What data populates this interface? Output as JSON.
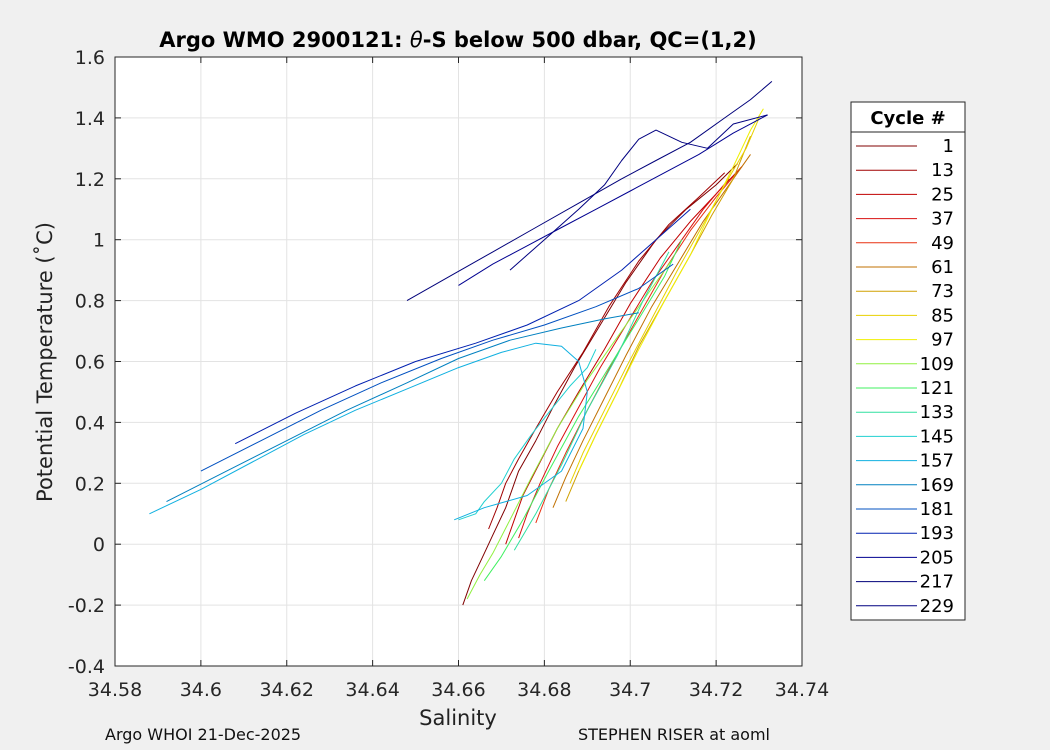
{
  "chart_data": {
    "type": "line",
    "title_prefix": "Argo WMO 2900121: ",
    "title_theta": "θ",
    "title_suffix": "-S below 500 dbar,  QC=(1,2)",
    "xlabel": "Salinity",
    "ylabel": "Potential Temperature (˚C)",
    "xlim": [
      34.58,
      34.74
    ],
    "ylim": [
      -0.4,
      1.6
    ],
    "xticks": [
      "34.58",
      "34.6",
      "34.62",
      "34.64",
      "34.66",
      "34.68",
      "34.7",
      "34.72",
      "34.74"
    ],
    "yticks": [
      "-0.4",
      "-0.2",
      "0",
      "0.2",
      "0.4",
      "0.6",
      "0.8",
      "1",
      "1.2",
      "1.4",
      "1.6"
    ],
    "grid": true,
    "legend_title": "Cycle #",
    "legend_position": "right-outside",
    "legend_entries": [
      "1",
      "13",
      "25",
      "37",
      "49",
      "61",
      "73",
      "85",
      "97",
      "109",
      "121",
      "133",
      "145",
      "157",
      "169",
      "181",
      "193",
      "205",
      "217",
      "229"
    ],
    "series_colors": [
      "#800000",
      "#a00000",
      "#c00000",
      "#d81010",
      "#e83010",
      "#c07000",
      "#d0a000",
      "#e8d000",
      "#f0f000",
      "#90f040",
      "#40f060",
      "#30e0a0",
      "#20d0d0",
      "#10b0e0",
      "#0080c0",
      "#0050c0",
      "#0020b0",
      "#000090",
      "#00007a",
      "#000080"
    ],
    "series": [
      {
        "name": "1",
        "points": [
          [
            34.661,
            -0.2
          ],
          [
            34.663,
            -0.12
          ],
          [
            34.666,
            -0.03
          ],
          [
            34.668,
            0.03
          ],
          [
            34.671,
            0.12
          ],
          [
            34.674,
            0.24
          ],
          [
            34.678,
            0.34
          ],
          [
            34.682,
            0.45
          ],
          [
            34.687,
            0.58
          ],
          [
            34.693,
            0.72
          ],
          [
            34.699,
            0.86
          ],
          [
            34.706,
            1.0
          ],
          [
            34.713,
            1.1
          ],
          [
            34.72,
            1.18
          ],
          [
            34.725,
            1.25
          ]
        ]
      },
      {
        "name": "13",
        "points": [
          [
            34.667,
            0.05
          ],
          [
            34.669,
            0.12
          ],
          [
            34.671,
            0.2
          ],
          [
            34.674,
            0.28
          ],
          [
            34.678,
            0.38
          ],
          [
            34.683,
            0.5
          ],
          [
            34.689,
            0.63
          ],
          [
            34.695,
            0.78
          ],
          [
            34.702,
            0.93
          ],
          [
            34.709,
            1.05
          ],
          [
            34.716,
            1.14
          ],
          [
            34.722,
            1.22
          ]
        ]
      },
      {
        "name": "25",
        "points": [
          [
            34.671,
            0.0
          ],
          [
            34.673,
            0.08
          ],
          [
            34.675,
            0.16
          ],
          [
            34.679,
            0.27
          ],
          [
            34.683,
            0.38
          ],
          [
            34.688,
            0.5
          ],
          [
            34.694,
            0.64
          ],
          [
            34.7,
            0.79
          ],
          [
            34.707,
            0.94
          ],
          [
            34.714,
            1.06
          ],
          [
            34.72,
            1.15
          ],
          [
            34.726,
            1.24
          ]
        ]
      },
      {
        "name": "37",
        "points": [
          [
            34.674,
            0.02
          ],
          [
            34.676,
            0.1
          ],
          [
            34.679,
            0.2
          ],
          [
            34.683,
            0.32
          ],
          [
            34.688,
            0.45
          ],
          [
            34.693,
            0.58
          ],
          [
            34.699,
            0.72
          ],
          [
            34.705,
            0.86
          ],
          [
            34.711,
            0.98
          ],
          [
            34.717,
            1.1
          ],
          [
            34.723,
            1.2
          ]
        ]
      },
      {
        "name": "49",
        "points": [
          [
            34.678,
            0.07
          ],
          [
            34.681,
            0.18
          ],
          [
            34.685,
            0.3
          ],
          [
            34.69,
            0.44
          ],
          [
            34.696,
            0.6
          ],
          [
            34.702,
            0.75
          ],
          [
            34.708,
            0.9
          ],
          [
            34.714,
            1.03
          ],
          [
            34.72,
            1.14
          ],
          [
            34.726,
            1.24
          ]
        ]
      },
      {
        "name": "61",
        "points": [
          [
            34.682,
            0.12
          ],
          [
            34.685,
            0.22
          ],
          [
            34.689,
            0.34
          ],
          [
            34.694,
            0.48
          ],
          [
            34.699,
            0.62
          ],
          [
            34.705,
            0.78
          ],
          [
            34.711,
            0.92
          ],
          [
            34.717,
            1.06
          ],
          [
            34.723,
            1.18
          ],
          [
            34.728,
            1.28
          ]
        ]
      },
      {
        "name": "73",
        "points": [
          [
            34.685,
            0.14
          ],
          [
            34.688,
            0.24
          ],
          [
            34.692,
            0.36
          ],
          [
            34.697,
            0.5
          ],
          [
            34.702,
            0.65
          ],
          [
            34.708,
            0.8
          ],
          [
            34.714,
            0.95
          ],
          [
            34.719,
            1.08
          ],
          [
            34.724,
            1.2
          ],
          [
            34.728,
            1.34
          ]
        ]
      },
      {
        "name": "85",
        "points": [
          [
            34.686,
            0.2
          ],
          [
            34.689,
            0.3
          ],
          [
            34.694,
            0.44
          ],
          [
            34.699,
            0.58
          ],
          [
            34.705,
            0.74
          ],
          [
            34.711,
            0.9
          ],
          [
            34.717,
            1.05
          ],
          [
            34.722,
            1.18
          ],
          [
            34.727,
            1.3
          ],
          [
            34.73,
            1.4
          ]
        ]
      },
      {
        "name": "97",
        "points": [
          [
            34.688,
            0.24
          ],
          [
            34.692,
            0.36
          ],
          [
            34.697,
            0.5
          ],
          [
            34.702,
            0.64
          ],
          [
            34.708,
            0.8
          ],
          [
            34.714,
            0.95
          ],
          [
            34.719,
            1.1
          ],
          [
            34.724,
            1.24
          ],
          [
            34.728,
            1.36
          ],
          [
            34.731,
            1.43
          ]
        ]
      },
      {
        "name": "109",
        "points": [
          [
            34.662,
            -0.18
          ],
          [
            34.665,
            -0.1
          ],
          [
            34.668,
            -0.03
          ],
          [
            34.672,
            0.08
          ],
          [
            34.677,
            0.22
          ],
          [
            34.683,
            0.38
          ],
          [
            34.69,
            0.54
          ],
          [
            34.697,
            0.68
          ],
          [
            34.704,
            0.82
          ],
          [
            34.71,
            0.94
          ]
        ]
      },
      {
        "name": "121",
        "points": [
          [
            34.666,
            -0.12
          ],
          [
            34.67,
            -0.04
          ],
          [
            34.675,
            0.08
          ],
          [
            34.681,
            0.24
          ],
          [
            34.688,
            0.42
          ],
          [
            34.695,
            0.58
          ],
          [
            34.702,
            0.74
          ],
          [
            34.708,
            0.88
          ],
          [
            34.712,
            1.0
          ]
        ]
      },
      {
        "name": "133",
        "points": [
          [
            34.673,
            -0.02
          ],
          [
            34.678,
            0.1
          ],
          [
            34.684,
            0.26
          ],
          [
            34.69,
            0.44
          ],
          [
            34.697,
            0.62
          ],
          [
            34.703,
            0.8
          ],
          [
            34.709,
            0.96
          ]
        ]
      },
      {
        "name": "145",
        "points": [
          [
            34.66,
            0.08
          ],
          [
            34.664,
            0.1
          ],
          [
            34.666,
            0.14
          ],
          [
            34.67,
            0.2
          ],
          [
            34.673,
            0.28
          ],
          [
            34.677,
            0.36
          ],
          [
            34.682,
            0.45
          ],
          [
            34.686,
            0.52
          ],
          [
            34.69,
            0.58
          ],
          [
            34.692,
            0.64
          ]
        ]
      },
      {
        "name": "157",
        "points": [
          [
            34.588,
            0.1
          ],
          [
            34.6,
            0.18
          ],
          [
            34.612,
            0.27
          ],
          [
            34.624,
            0.36
          ],
          [
            34.636,
            0.44
          ],
          [
            34.648,
            0.51
          ],
          [
            34.66,
            0.58
          ],
          [
            34.67,
            0.63
          ],
          [
            34.678,
            0.66
          ],
          [
            34.684,
            0.65
          ],
          [
            34.688,
            0.6
          ],
          [
            34.69,
            0.5
          ],
          [
            34.689,
            0.38
          ],
          [
            34.684,
            0.24
          ],
          [
            34.676,
            0.16
          ],
          [
            34.666,
            0.12
          ],
          [
            34.659,
            0.08
          ]
        ]
      },
      {
        "name": "169",
        "points": [
          [
            34.592,
            0.14
          ],
          [
            34.606,
            0.24
          ],
          [
            34.62,
            0.34
          ],
          [
            34.634,
            0.44
          ],
          [
            34.648,
            0.53
          ],
          [
            34.66,
            0.61
          ],
          [
            34.672,
            0.67
          ],
          [
            34.684,
            0.71
          ],
          [
            34.694,
            0.74
          ],
          [
            34.702,
            0.76
          ]
        ]
      },
      {
        "name": "181",
        "points": [
          [
            34.6,
            0.24
          ],
          [
            34.614,
            0.34
          ],
          [
            34.628,
            0.44
          ],
          [
            34.642,
            0.53
          ],
          [
            34.656,
            0.61
          ],
          [
            34.668,
            0.67
          ],
          [
            34.68,
            0.72
          ],
          [
            34.692,
            0.78
          ],
          [
            34.702,
            0.84
          ],
          [
            34.71,
            0.92
          ]
        ]
      },
      {
        "name": "193",
        "points": [
          [
            34.608,
            0.33
          ],
          [
            34.622,
            0.43
          ],
          [
            34.636,
            0.52
          ],
          [
            34.65,
            0.6
          ],
          [
            34.664,
            0.66
          ],
          [
            34.676,
            0.72
          ],
          [
            34.688,
            0.8
          ],
          [
            34.698,
            0.9
          ],
          [
            34.706,
            1.0
          ],
          [
            34.714,
            1.1
          ]
        ]
      },
      {
        "name": "205",
        "points": [
          [
            34.66,
            0.85
          ],
          [
            34.668,
            0.92
          ],
          [
            34.676,
            0.98
          ],
          [
            34.684,
            1.04
          ],
          [
            34.692,
            1.1
          ],
          [
            34.7,
            1.16
          ],
          [
            34.708,
            1.22
          ],
          [
            34.716,
            1.28
          ],
          [
            34.724,
            1.35
          ],
          [
            34.732,
            1.41
          ]
        ]
      },
      {
        "name": "217",
        "points": [
          [
            34.648,
            0.8
          ],
          [
            34.658,
            0.88
          ],
          [
            34.668,
            0.96
          ],
          [
            34.678,
            1.04
          ],
          [
            34.688,
            1.12
          ],
          [
            34.698,
            1.2
          ],
          [
            34.706,
            1.26
          ],
          [
            34.714,
            1.32
          ],
          [
            34.722,
            1.4
          ],
          [
            34.728,
            1.46
          ],
          [
            34.733,
            1.52
          ]
        ]
      },
      {
        "name": "229",
        "points": [
          [
            34.672,
            0.9
          ],
          [
            34.68,
            1.0
          ],
          [
            34.688,
            1.1
          ],
          [
            34.694,
            1.18
          ],
          [
            34.698,
            1.26
          ],
          [
            34.702,
            1.33
          ],
          [
            34.706,
            1.36
          ],
          [
            34.712,
            1.32
          ],
          [
            34.718,
            1.3
          ],
          [
            34.724,
            1.38
          ],
          [
            34.732,
            1.41
          ]
        ]
      }
    ]
  },
  "footer": {
    "left": "Argo WHOI 21-Dec-2025",
    "right": "STEPHEN RISER at aoml"
  }
}
